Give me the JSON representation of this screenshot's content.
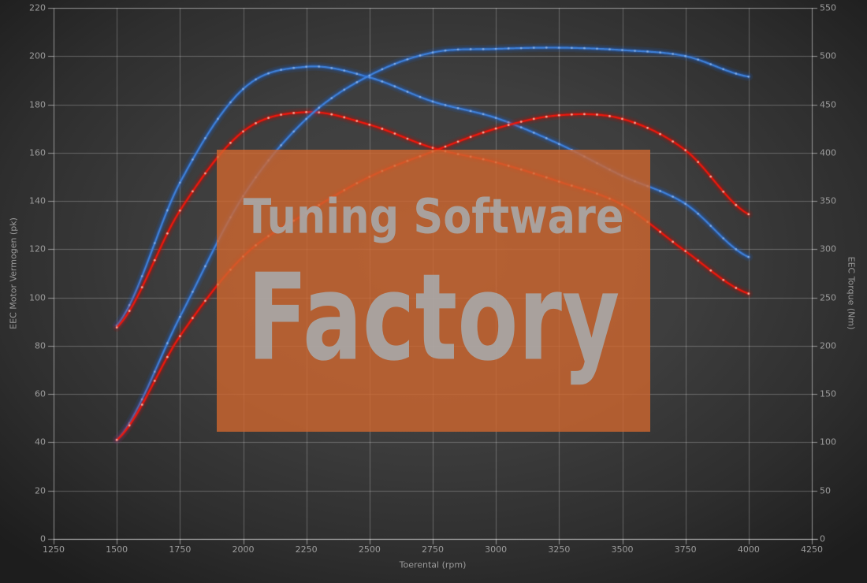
{
  "watermark": {
    "line1": "Tuning Software",
    "line2": "Factory"
  },
  "chart_data": {
    "type": "line",
    "title": "",
    "xlabel": "Toerental (rpm)",
    "ylabel_left": "EEC Motor Vermogen (pk)",
    "ylabel_right": "EEC Torque (Nm)",
    "x_range": [
      1250,
      4250
    ],
    "y_left_range": [
      0,
      220
    ],
    "y_right_range": [
      0,
      550
    ],
    "x_ticks": [
      1250,
      1500,
      1750,
      2000,
      2250,
      2500,
      2750,
      3000,
      3250,
      3500,
      3750,
      4000,
      4250
    ],
    "y_left_ticks": [
      0,
      20,
      40,
      60,
      80,
      100,
      120,
      140,
      160,
      180,
      200,
      220
    ],
    "y_right_ticks": [
      0,
      50,
      100,
      150,
      200,
      250,
      300,
      350,
      400,
      450,
      500,
      550
    ],
    "grid": true,
    "legend": "none",
    "rpm": [
      1500,
      1750,
      2000,
      2250,
      2500,
      2750,
      3000,
      3250,
      3500,
      3750,
      4000
    ],
    "series": [
      {
        "id": "torque-tuned-blue",
        "axis": "right",
        "unit": "Nm",
        "color": "#3f82dc",
        "glow": "#1e62cf",
        "marker": "#b4d2f8",
        "values": [
          221,
          369,
          466,
          489,
          478,
          453,
          436,
          409,
          376,
          347,
          292
        ]
      },
      {
        "id": "torque-original-red",
        "axis": "right",
        "unit": "Nm",
        "color": "#f2170c",
        "glow": "#b80f07",
        "marker": "#ffb2a0",
        "values": [
          219,
          340,
          422,
          442,
          429,
          405,
          390,
          370,
          346,
          298,
          254
        ]
      },
      {
        "id": "power-tuned-blue",
        "axis": "left",
        "unit": "pk",
        "color": "#3f82dc",
        "glow": "#1e62cf",
        "marker": "#b4d2f8",
        "values": [
          41,
          92,
          142,
          174,
          192,
          201.5,
          203,
          203.5,
          202.5,
          200,
          191.5
        ]
      },
      {
        "id": "power-original-red",
        "axis": "left",
        "unit": "pk",
        "color": "#f2170c",
        "glow": "#b80f07",
        "marker": "#ffb2a0",
        "values": [
          41,
          84,
          117,
          135,
          150,
          160.5,
          170,
          175.5,
          174,
          161,
          134.5
        ]
      }
    ]
  },
  "colors": {
    "background_center": "#474747",
    "background_edge": "#1d1d1d",
    "grid": "#8f8f8f",
    "axis_text": "#9c9c9c",
    "watermark_box": "#d0662e",
    "watermark_text": "#a9a9a9",
    "curve_blue": "#3f82dc",
    "curve_red": "#f2170c"
  }
}
